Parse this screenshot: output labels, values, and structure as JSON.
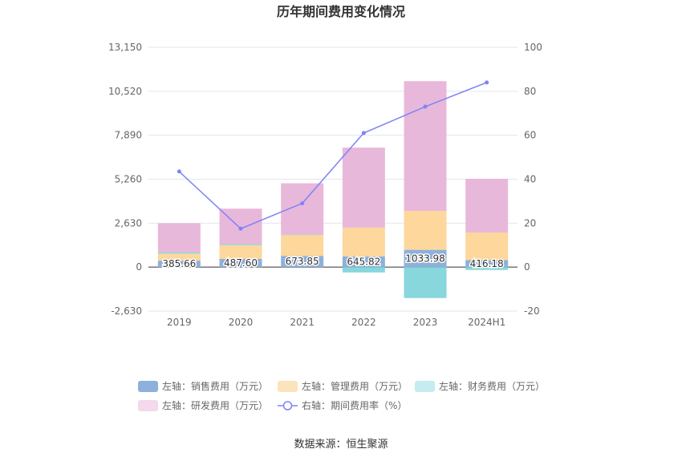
{
  "chart_data": {
    "type": "bar",
    "title": "历年期间费用变化情况",
    "categories": [
      "2019",
      "2020",
      "2021",
      "2022",
      "2023",
      "2024H1"
    ],
    "y_left": {
      "ticks": [
        "13,150",
        "10,520",
        "7,890",
        "5,260",
        "2,630",
        "0",
        "-2,630"
      ],
      "range": [
        -2630,
        13150
      ]
    },
    "y_right": {
      "ticks": [
        "100",
        "80",
        "60",
        "40",
        "20",
        "0",
        "-20"
      ],
      "range": [
        -20,
        100
      ]
    },
    "series": [
      {
        "name": "左轴：销售费用（万元）",
        "color": "#8eb0dc",
        "values": [
          385.66,
          487.6,
          673.85,
          645.82,
          1033.98,
          416.18
        ],
        "labels": [
          "385.66",
          "487.60",
          "673.85",
          "645.82",
          "1033.98",
          "416.18"
        ]
      },
      {
        "name": "左轴：管理费用（万元）",
        "color": "#fdd79b",
        "values": [
          420,
          830,
          1260,
          1720,
          2330,
          1650
        ]
      },
      {
        "name": "左轴：财务费用（万元）",
        "color": "#87d7dc",
        "values": [
          80,
          60,
          10,
          -320,
          -1850,
          -170
        ]
      },
      {
        "name": "左轴：研发费用（万元）",
        "color": "#e8b8da",
        "values": [
          1740,
          2120,
          3070,
          4780,
          7760,
          3220
        ]
      },
      {
        "name": "右轴：期间费用率（%）",
        "type": "line",
        "axis": "right",
        "color": "#7f83f7",
        "values": [
          43.5,
          17.5,
          29,
          61,
          73,
          84
        ]
      }
    ],
    "legend_position": "bottom",
    "grid": true
  },
  "legend_colors": [
    "#8eb0dc",
    "#fde3bb",
    "#c5ecee",
    "#f4d8ec"
  ],
  "footer": {
    "source": "数据来源：恒生聚源"
  }
}
